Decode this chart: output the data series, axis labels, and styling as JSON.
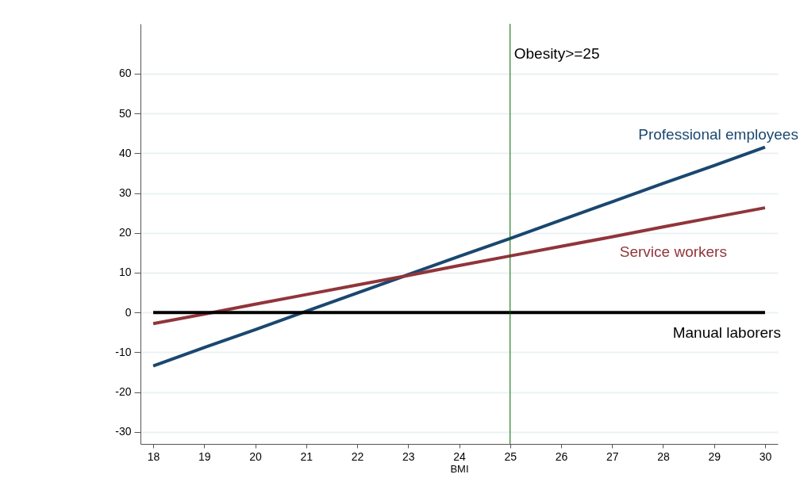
{
  "chart_data": {
    "type": "line",
    "xlabel": "BMI",
    "x": [
      18,
      19,
      20,
      21,
      22,
      23,
      24,
      25,
      26,
      27,
      28,
      29,
      30
    ],
    "series": [
      {
        "name": "Professional employees",
        "color": "#1a476f",
        "values": [
          -13.4,
          -8.8,
          -4.3,
          0.3,
          4.9,
          9.5,
          14.1,
          18.6,
          23.2,
          27.8,
          32.4,
          36.9,
          41.5
        ]
      },
      {
        "name": "Service workers",
        "color": "#90353b",
        "values": [
          -2.8,
          -0.4,
          2.1,
          4.5,
          6.9,
          9.3,
          11.8,
          14.2,
          16.6,
          19.0,
          21.5,
          23.9,
          26.3
        ]
      },
      {
        "name": "Manual laborers",
        "color": "#000000",
        "values": [
          0,
          0,
          0,
          0,
          0,
          0,
          0,
          0,
          0,
          0,
          0,
          0,
          0
        ]
      }
    ],
    "xlim": [
      17.75,
      30.25
    ],
    "xticks": [
      18,
      19,
      20,
      21,
      22,
      23,
      24,
      25,
      26,
      27,
      28,
      29,
      30
    ],
    "ylim": [
      -33,
      72.5
    ],
    "yticks": [
      -30,
      -20,
      -10,
      0,
      10,
      20,
      30,
      40,
      50,
      60
    ],
    "grid": "y",
    "legend": false,
    "line_style": "solid",
    "ref_lines": [
      {
        "axis": "x",
        "value": 25,
        "label": "Obesity>=25",
        "color": "#006400"
      }
    ]
  }
}
